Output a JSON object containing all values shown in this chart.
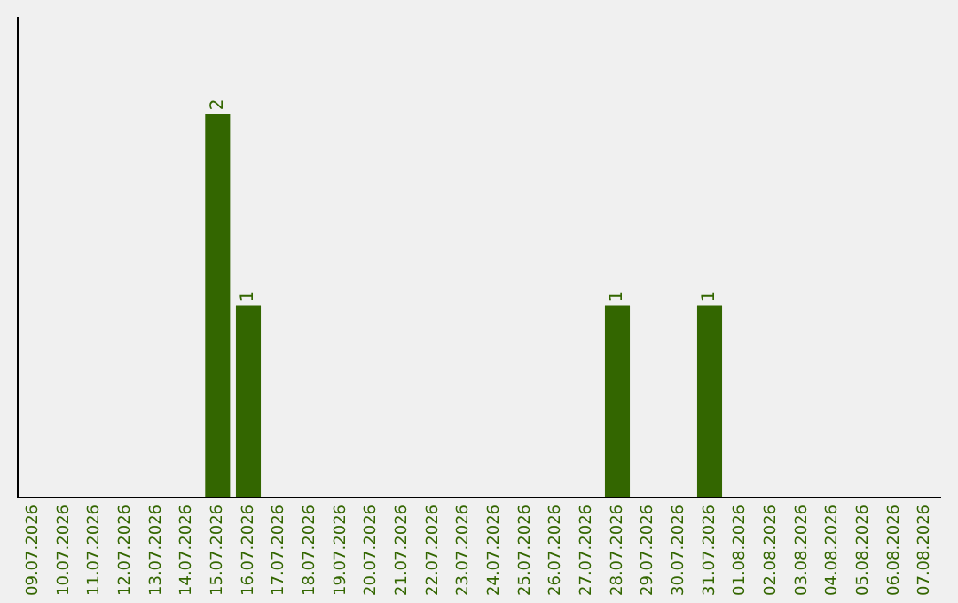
{
  "chart_data": {
    "type": "bar",
    "categories": [
      "09.07.2026",
      "10.07.2026",
      "11.07.2026",
      "12.07.2026",
      "13.07.2026",
      "14.07.2026",
      "15.07.2026",
      "16.07.2026",
      "17.07.2026",
      "18.07.2026",
      "19.07.2026",
      "20.07.2026",
      "21.07.2026",
      "22.07.2026",
      "23.07.2026",
      "24.07.2026",
      "25.07.2026",
      "26.07.2026",
      "27.07.2026",
      "28.07.2026",
      "29.07.2026",
      "30.07.2026",
      "31.07.2026",
      "01.08.2026",
      "02.08.2026",
      "03.08.2026",
      "04.08.2026",
      "05.08.2026",
      "06.08.2026",
      "07.08.2026"
    ],
    "values": [
      0,
      0,
      0,
      0,
      0,
      0,
      2,
      1,
      0,
      0,
      0,
      0,
      0,
      0,
      0,
      0,
      0,
      0,
      0,
      1,
      0,
      0,
      1,
      0,
      0,
      0,
      0,
      0,
      0,
      0
    ],
    "value_labels": [
      null,
      null,
      null,
      null,
      null,
      null,
      "2",
      "1",
      null,
      null,
      null,
      null,
      null,
      null,
      null,
      null,
      null,
      null,
      null,
      "1",
      null,
      null,
      "1",
      null,
      null,
      null,
      null,
      null,
      null,
      null
    ],
    "color": "#336600",
    "grid": false,
    "legend": false,
    "tick_labels": "x"
  }
}
